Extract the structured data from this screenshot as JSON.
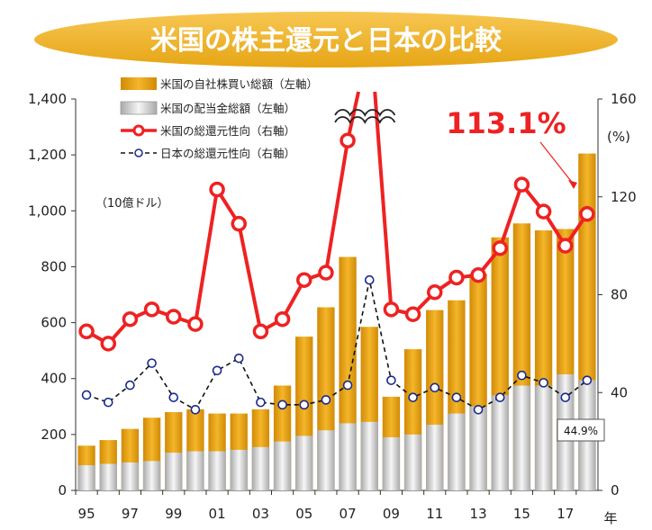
{
  "chart_data": {
    "type": "bar",
    "title": "米国の株主還元と日本の比較",
    "left_unit": "（10億ドル）",
    "right_unit": "(%)",
    "year_suffix": "年",
    "categories": [
      "95",
      "96",
      "97",
      "98",
      "99",
      "00",
      "01",
      "02",
      "03",
      "04",
      "05",
      "06",
      "07",
      "08",
      "09",
      "10",
      "11",
      "12",
      "13",
      "14",
      "15",
      "16",
      "17",
      "18"
    ],
    "x_tick_labels": [
      "95",
      "",
      "97",
      "",
      "99",
      "",
      "01",
      "",
      "03",
      "",
      "05",
      "",
      "07",
      "",
      "09",
      "",
      "11",
      "",
      "13",
      "",
      "15",
      "",
      "17",
      ""
    ],
    "left_axis": {
      "ylim": [
        0,
        1400
      ],
      "ticks": [
        "0",
        "200",
        "400",
        "600",
        "800",
        "1,000",
        "1,200",
        "1,400"
      ]
    },
    "right_axis": {
      "ylim": [
        0,
        160
      ],
      "ticks": [
        "0",
        "40",
        "80",
        "120",
        "160"
      ]
    },
    "series": [
      {
        "name": "米国の自社株買い総額（左軸）",
        "type": "bar",
        "axis": "left",
        "color": "#e8a412",
        "values": [
          160,
          180,
          220,
          260,
          280,
          290,
          275,
          275,
          290,
          375,
          550,
          655,
          835,
          585,
          335,
          505,
          645,
          680,
          775,
          905,
          955,
          930,
          935,
          1205
        ]
      },
      {
        "name": "米国の配当金総額（左軸）",
        "type": "bar",
        "axis": "left",
        "color": "#d9d9d9",
        "values": [
          90,
          95,
          100,
          105,
          135,
          140,
          140,
          145,
          155,
          175,
          195,
          215,
          240,
          245,
          190,
          200,
          235,
          275,
          300,
          340,
          375,
          375,
          415,
          395
        ]
      },
      {
        "name": "米国の総還元性向（右軸）",
        "type": "line",
        "axis": "right",
        "color": "#ee2222",
        "values": [
          65,
          60,
          70,
          74,
          71,
          68,
          123,
          109,
          65,
          70,
          86,
          89,
          143,
          null,
          74,
          72,
          81,
          87,
          88,
          99,
          125,
          114,
          100,
          113
        ]
      },
      {
        "name": "日本の総還元性向（右軸）",
        "type": "line",
        "axis": "right",
        "color": "#111111",
        "dashed": true,
        "values": [
          39,
          36,
          43,
          52,
          38,
          33,
          49,
          54,
          36,
          35,
          35,
          37,
          43,
          86,
          45,
          38,
          42,
          38,
          33,
          38,
          47,
          44,
          38,
          45
        ]
      }
    ],
    "annotations": [
      {
        "text": "113.1%",
        "color": "#ee2222"
      },
      {
        "text": "44.9%",
        "color": "#111111"
      }
    ]
  }
}
